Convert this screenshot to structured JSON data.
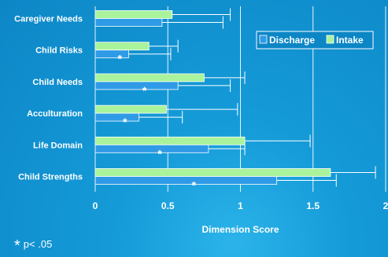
{
  "chart_data": {
    "type": "bar",
    "orientation": "horizontal",
    "xlabel": "Dimension Score",
    "xlim": [
      0,
      2
    ],
    "xticks": [
      "0",
      "0.5",
      "1",
      "1.5",
      "2"
    ],
    "grid": true,
    "legend": "top-right",
    "categories": [
      "Caregiver Needs",
      "Child Risks",
      "Child Needs",
      "Acculturation",
      "Life Domain",
      "Child Strengths"
    ],
    "series": [
      {
        "name": "Discharge",
        "color": "#2f9be6",
        "values": [
          0.46,
          0.23,
          0.57,
          0.3,
          0.78,
          1.25
        ],
        "error_upper": [
          0.88,
          0.52,
          0.93,
          0.6,
          1.03,
          1.66
        ],
        "significant": [
          false,
          true,
          true,
          true,
          true,
          true
        ]
      },
      {
        "name": "Intake",
        "color": "#a9f39c",
        "values": [
          0.53,
          0.37,
          0.75,
          0.49,
          1.03,
          1.62
        ],
        "error_upper": [
          0.93,
          0.57,
          1.03,
          0.98,
          1.48,
          1.93
        ],
        "significant": [
          false,
          false,
          false,
          false,
          false,
          false
        ]
      }
    ],
    "significance_marker": "*"
  },
  "footnote": {
    "marker": "*",
    "text": "p< .05"
  }
}
